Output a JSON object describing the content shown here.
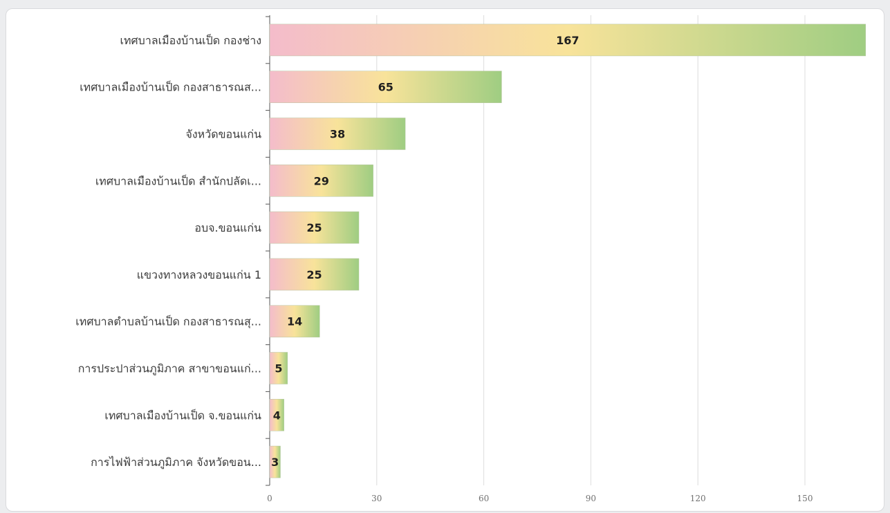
{
  "chart_data": {
    "type": "bar",
    "orientation": "horizontal",
    "categories": [
      "เทศบาลเมืองบ้านเป็ด กองช่าง",
      "เทศบาลเมืองบ้านเป็ด กองสาธารณส...",
      "จังหวัดขอนแก่น",
      "เทศบาลเมืองบ้านเป็ด สำนักปลัดเ...",
      "อบจ.ขอนแก่น",
      "แขวงทางหลวงขอนแก่น 1",
      "เทศบาลตำบลบ้านเป็ด กองสาธารณสุ...",
      "การประปาส่วนภูมิภาค สาขาขอนแก่...",
      "เทศบาลเมืองบ้านเป็ด จ.ขอนแก่น",
      "การไฟฟ้าส่วนภูมิภาค จังหวัดขอน..."
    ],
    "values": [
      167,
      65,
      38,
      29,
      25,
      25,
      14,
      5,
      4,
      3
    ],
    "xticks": [
      0,
      30,
      60,
      90,
      120,
      150
    ],
    "xlim": [
      0,
      167
    ],
    "grid": "vertical",
    "data_labels": true,
    "bar_gradient": [
      "#f4bccb",
      "#f8e39a",
      "#9fcd82"
    ]
  }
}
